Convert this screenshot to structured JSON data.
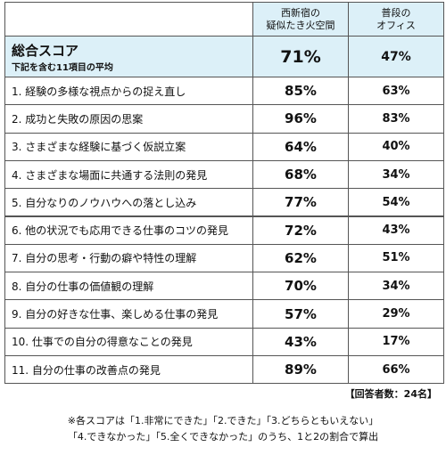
{
  "header": {
    "columns": [
      [
        "西新宿の",
        "疑似たき火空間"
      ],
      [
        "普段の",
        "オフィス"
      ]
    ]
  },
  "summary": {
    "title": "総合スコア",
    "subtitle": "下記を含む11項目の平均",
    "values": [
      "71%",
      "47%"
    ]
  },
  "rows": [
    {
      "label": "1. 経験の多様な視点からの捉え直し",
      "values": [
        "85%",
        "63%"
      ]
    },
    {
      "label": "2. 成功と失敗の原因の思案",
      "values": [
        "96%",
        "83%"
      ]
    },
    {
      "label": "3. さまざまな経験に基づく仮説立案",
      "values": [
        "64%",
        "40%"
      ]
    },
    {
      "label": "4. さまざまな場面に共通する法則の発見",
      "values": [
        "68%",
        "34%"
      ]
    },
    {
      "label": "5. 自分なりのノウハウへの落とし込み",
      "values": [
        "77%",
        "54%"
      ]
    },
    {
      "label": "6. 他の状況でも応用できる仕事のコツの発見",
      "values": [
        "72%",
        "43%"
      ]
    },
    {
      "label": "7. 自分の思考・行動の癖や特性の理解",
      "values": [
        "62%",
        "51%"
      ]
    },
    {
      "label": "8. 自分の仕事の価値観の理解",
      "values": [
        "70%",
        "34%"
      ]
    },
    {
      "label": "9. 自分の好きな仕事、楽しめる仕事の発見",
      "values": [
        "57%",
        "29%"
      ]
    },
    {
      "label": "10. 仕事での自分の得意なことの発見",
      "values": [
        "43%",
        "17%"
      ]
    },
    {
      "label": "11. 自分の仕事の改善点の発見",
      "values": [
        "89%",
        "66%"
      ]
    }
  ],
  "footer": {
    "respondents": "【回答者数：24名】",
    "notes": [
      "※各スコアは「1.非常にできた」「2.できた」「3.どちらともいえない」",
      "「4.できなかった」「5.全くできなかった」のうち、1と2の割合で算出"
    ]
  }
}
